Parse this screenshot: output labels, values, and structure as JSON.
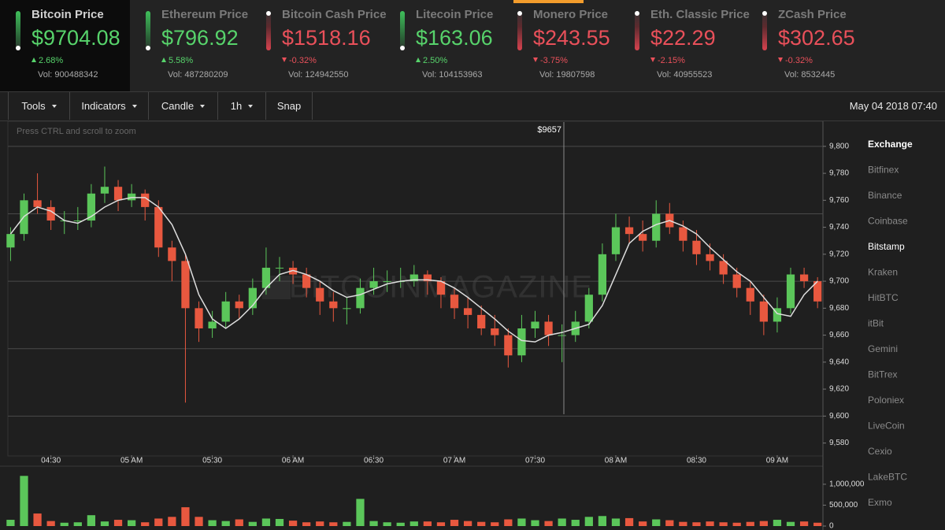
{
  "tickers": [
    {
      "name": "Bitcoin Price",
      "price": "$9704.08",
      "change": "2.68%",
      "vol": "Vol: 900488342",
      "trend": "up",
      "color": "#57d36b"
    },
    {
      "name": "Ethereum Price",
      "price": "$796.92",
      "change": "5.58%",
      "vol": "Vol: 487280209",
      "trend": "up",
      "color": "#57d36b"
    },
    {
      "name": "Bitcoin Cash Price",
      "price": "$1518.16",
      "change": "-0.32%",
      "vol": "Vol: 124942550",
      "trend": "down",
      "color": "#e9505a"
    },
    {
      "name": "Litecoin Price",
      "price": "$163.06",
      "change": "2.50%",
      "vol": "Vol: 104153963",
      "trend": "up",
      "color": "#57d36b"
    },
    {
      "name": "Monero Price",
      "price": "$243.55",
      "change": "-3.75%",
      "vol": "Vol: 19807598",
      "trend": "down",
      "color": "#e9505a"
    },
    {
      "name": "Eth. Classic Price",
      "price": "$22.29",
      "change": "-2.15%",
      "vol": "Vol: 40955523",
      "trend": "down",
      "color": "#e9505a"
    },
    {
      "name": "ZCash Price",
      "price": "$302.65",
      "change": "-0.32%",
      "vol": "Vol: 8532445",
      "trend": "down",
      "color": "#e9505a"
    }
  ],
  "toolbar": {
    "buttons": [
      {
        "label": "Tools",
        "dropdown": true
      },
      {
        "label": "Indicators",
        "dropdown": true
      },
      {
        "label": "Candle",
        "dropdown": true
      },
      {
        "label": "1h",
        "dropdown": true
      },
      {
        "label": "Snap",
        "dropdown": false
      }
    ],
    "datetime": "May 04 2018 07:40"
  },
  "exchanges": {
    "title": "Exchange",
    "items": [
      "Bitfinex",
      "Binance",
      "Coinbase",
      "Bitstamp",
      "Kraken",
      "HitBTC",
      "itBit",
      "Gemini",
      "BitTrex",
      "Poloniex",
      "LiveCoin",
      "Cexio",
      "LakeBTC",
      "Exmo"
    ],
    "selected": 3
  },
  "chart_data": {
    "type": "candlestick",
    "hint": "Press CTRL and scroll to zoom",
    "crosshair_label": "$9657",
    "watermark": "BITCOINMAGAZINE",
    "up_color": "#5bc65a",
    "down_color": "#e8583f",
    "ma_color": "#dddddd",
    "x": [
      "04:15",
      "04:20",
      "04:25",
      "04:30",
      "04:35",
      "04:40",
      "04:45",
      "04:50",
      "04:55",
      "05:00",
      "05:05",
      "05:10",
      "05:15",
      "05:20",
      "05:25",
      "05:30",
      "05:35",
      "05:40",
      "05:45",
      "05:50",
      "05:55",
      "06:00",
      "06:05",
      "06:10",
      "06:15",
      "06:20",
      "06:25",
      "06:30",
      "06:35",
      "06:40",
      "06:45",
      "06:50",
      "06:55",
      "07:00",
      "07:05",
      "07:10",
      "07:15",
      "07:20",
      "07:25",
      "07:30",
      "07:35",
      "07:40",
      "07:45",
      "07:50",
      "07:55",
      "08:00",
      "08:05",
      "08:10",
      "08:15",
      "08:20",
      "08:25",
      "08:30",
      "08:35",
      "08:40",
      "08:45",
      "08:50",
      "08:55",
      "09:00",
      "09:05",
      "09:10",
      "09:15"
    ],
    "candles": [
      [
        9725,
        9740,
        9715,
        9735
      ],
      [
        9735,
        9765,
        9730,
        9760
      ],
      [
        9760,
        9780,
        9750,
        9755
      ],
      [
        9755,
        9760,
        9738,
        9745
      ],
      [
        9745,
        9752,
        9735,
        9745
      ],
      [
        9745,
        9755,
        9738,
        9745
      ],
      [
        9745,
        9772,
        9740,
        9765
      ],
      [
        9765,
        9785,
        9758,
        9770
      ],
      [
        9770,
        9775,
        9752,
        9760
      ],
      [
        9760,
        9772,
        9755,
        9765
      ],
      [
        9765,
        9768,
        9745,
        9755
      ],
      [
        9755,
        9760,
        9718,
        9725
      ],
      [
        9725,
        9730,
        9700,
        9715
      ],
      [
        9715,
        9720,
        9610,
        9680
      ],
      [
        9680,
        9685,
        9655,
        9665
      ],
      [
        9665,
        9678,
        9658,
        9670
      ],
      [
        9670,
        9692,
        9665,
        9685
      ],
      [
        9685,
        9690,
        9672,
        9680
      ],
      [
        9680,
        9702,
        9675,
        9695
      ],
      [
        9695,
        9725,
        9690,
        9710
      ],
      [
        9710,
        9718,
        9700,
        9710
      ],
      [
        9710,
        9715,
        9698,
        9705
      ],
      [
        9705,
        9710,
        9688,
        9695
      ],
      [
        9695,
        9700,
        9675,
        9685
      ],
      [
        9685,
        9692,
        9670,
        9680
      ],
      [
        9680,
        9688,
        9668,
        9680
      ],
      [
        9680,
        9702,
        9676,
        9695
      ],
      [
        9695,
        9710,
        9690,
        9700
      ],
      [
        9700,
        9708,
        9692,
        9700
      ],
      [
        9700,
        9710,
        9695,
        9700
      ],
      [
        9700,
        9712,
        9696,
        9705
      ],
      [
        9705,
        9708,
        9690,
        9700
      ],
      [
        9700,
        9703,
        9680,
        9690
      ],
      [
        9690,
        9695,
        9672,
        9680
      ],
      [
        9680,
        9688,
        9665,
        9675
      ],
      [
        9675,
        9682,
        9660,
        9665
      ],
      [
        9665,
        9675,
        9652,
        9660
      ],
      [
        9660,
        9665,
        9636,
        9645
      ],
      [
        9645,
        9675,
        9640,
        9665
      ],
      [
        9665,
        9678,
        9658,
        9670
      ],
      [
        9670,
        9675,
        9652,
        9660
      ],
      [
        9660,
        9668,
        9640,
        9660
      ],
      [
        9660,
        9678,
        9655,
        9670
      ],
      [
        9670,
        9695,
        9665,
        9690
      ],
      [
        9690,
        9728,
        9685,
        9720
      ],
      [
        9720,
        9750,
        9715,
        9740
      ],
      [
        9740,
        9748,
        9728,
        9735
      ],
      [
        9735,
        9745,
        9722,
        9730
      ],
      [
        9730,
        9760,
        9725,
        9750
      ],
      [
        9750,
        9758,
        9735,
        9740
      ],
      [
        9740,
        9745,
        9722,
        9730
      ],
      [
        9730,
        9738,
        9712,
        9720
      ],
      [
        9720,
        9728,
        9708,
        9715
      ],
      [
        9715,
        9720,
        9698,
        9705
      ],
      [
        9705,
        9710,
        9688,
        9695
      ],
      [
        9695,
        9700,
        9675,
        9685
      ],
      [
        9685,
        9690,
        9660,
        9670
      ],
      [
        9670,
        9688,
        9662,
        9680
      ],
      [
        9680,
        9710,
        9676,
        9705
      ],
      [
        9705,
        9710,
        9695,
        9700
      ],
      [
        9700,
        9703,
        9680,
        9685
      ]
    ],
    "ma": [
      9735,
      9748,
      9755,
      9752,
      9745,
      9743,
      9748,
      9755,
      9760,
      9762,
      9762,
      9755,
      9742,
      9720,
      9690,
      9672,
      9665,
      9672,
      9682,
      9695,
      9705,
      9708,
      9705,
      9700,
      9693,
      9688,
      9690,
      9694,
      9698,
      9700,
      9701,
      9701,
      9700,
      9695,
      9688,
      9680,
      9672,
      9663,
      9656,
      9655,
      9660,
      9662,
      9665,
      9668,
      9682,
      9705,
      9728,
      9737,
      9742,
      9745,
      9741,
      9735,
      9725,
      9716,
      9707,
      9700,
      9688,
      9676,
      9674,
      9690,
      9700
    ],
    "volume": [
      150000,
      1200000,
      300000,
      120000,
      80000,
      90000,
      260000,
      110000,
      150000,
      140000,
      90000,
      180000,
      220000,
      450000,
      220000,
      140000,
      120000,
      160000,
      100000,
      180000,
      170000,
      130000,
      90000,
      110000,
      90000,
      100000,
      650000,
      120000,
      90000,
      80000,
      110000,
      110000,
      90000,
      150000,
      120000,
      100000,
      90000,
      160000,
      180000,
      140000,
      120000,
      180000,
      150000,
      220000,
      240000,
      180000,
      190000,
      110000,
      160000,
      140000,
      100000,
      90000,
      110000,
      90000,
      80000,
      100000,
      120000,
      150000,
      100000,
      110000,
      80000
    ],
    "xlim": [
      "04:14",
      "09:17"
    ],
    "xticks": [
      {
        "value": "04:30",
        "label": "04:30"
      },
      {
        "value": "05:00",
        "label": "05 AM"
      },
      {
        "value": "05:30",
        "label": "05:30"
      },
      {
        "value": "06:00",
        "label": "06 AM"
      },
      {
        "value": "06:30",
        "label": "06:30"
      },
      {
        "value": "07:00",
        "label": "07 AM"
      },
      {
        "value": "07:30",
        "label": "07:30"
      },
      {
        "value": "08:00",
        "label": "08 AM"
      },
      {
        "value": "08:30",
        "label": "08:30"
      },
      {
        "value": "09:00",
        "label": "09 AM"
      }
    ],
    "ylim": [
      9571,
      9818
    ],
    "yticks": [
      {
        "value": 9580,
        "label": "9,580"
      },
      {
        "value": 9600,
        "label": "9,600"
      },
      {
        "value": 9620,
        "label": "9,620"
      },
      {
        "value": 9640,
        "label": "9,640"
      },
      {
        "value": 9660,
        "label": "9,660"
      },
      {
        "value": 9680,
        "label": "9,680"
      },
      {
        "value": 9700,
        "label": "9,700"
      },
      {
        "value": 9720,
        "label": "9,720"
      },
      {
        "value": 9740,
        "label": "9,740"
      },
      {
        "value": 9760,
        "label": "9,760"
      },
      {
        "value": 9780,
        "label": "9,780"
      },
      {
        "value": 9800,
        "label": "9,800"
      }
    ],
    "ygrid": [
      9600,
      9650,
      9700,
      9750,
      9800
    ],
    "volume_ylim": [
      0,
      1375000
    ],
    "volume_yticks": [
      0,
      {
        "value": 500000,
        "label": "500,000"
      },
      {
        "value": 1000000,
        "label": "1,000,000"
      }
    ]
  }
}
